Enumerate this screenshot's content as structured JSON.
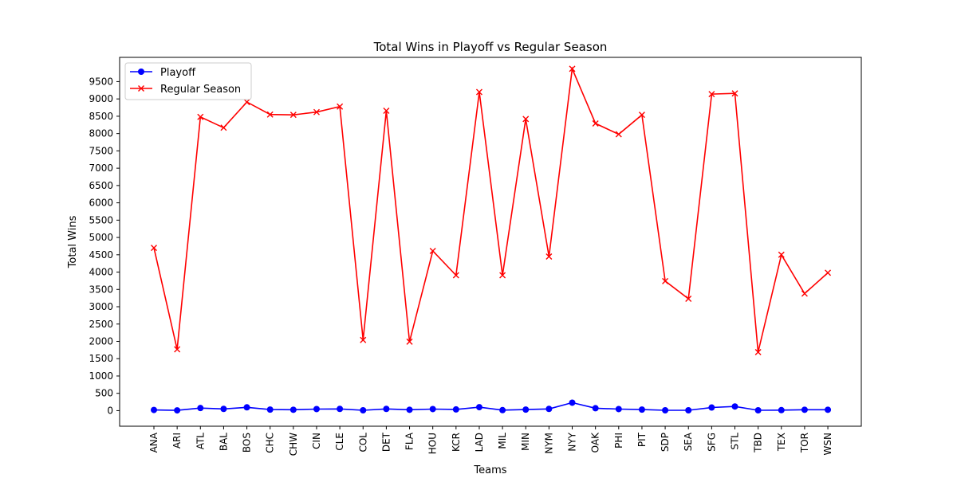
{
  "chart_data": {
    "type": "line",
    "title": "Total Wins in Playoff vs Regular Season",
    "xlabel": "Teams",
    "ylabel": "Total Wins",
    "categories": [
      "ANA",
      "ARI",
      "ATL",
      "BAL",
      "BOS",
      "CHC",
      "CHW",
      "CIN",
      "CLE",
      "COL",
      "DET",
      "FLA",
      "HOU",
      "KCR",
      "LAD",
      "MIL",
      "MIN",
      "NYM",
      "NYY",
      "OAK",
      "PHI",
      "PIT",
      "SDP",
      "SEA",
      "SFG",
      "STL",
      "TBD",
      "TEX",
      "TOR",
      "WSN"
    ],
    "ylim": [
      -450,
      10200
    ],
    "yticks": [
      0,
      500,
      1000,
      1500,
      2000,
      2500,
      3000,
      3500,
      4000,
      4500,
      5000,
      5500,
      6000,
      6500,
      7000,
      7500,
      8000,
      8500,
      9000,
      9500
    ],
    "grid": false,
    "legend_position": "top-left",
    "series": [
      {
        "name": "Playoff",
        "color": "#0000ff",
        "marker": "circle",
        "values": [
          20,
          8,
          75,
          50,
          95,
          30,
          25,
          45,
          50,
          10,
          50,
          25,
          45,
          35,
          100,
          15,
          30,
          50,
          230,
          70,
          45,
          30,
          10,
          10,
          90,
          120,
          10,
          15,
          25,
          25
        ]
      },
      {
        "name": "Regular Season",
        "color": "#ff0000",
        "marker": "x",
        "values": [
          4700,
          1770,
          8480,
          8170,
          8910,
          8550,
          8540,
          8620,
          8780,
          2040,
          8660,
          1990,
          4610,
          3910,
          9200,
          3910,
          8420,
          4450,
          9870,
          8290,
          7980,
          8540,
          3740,
          3230,
          9140,
          9160,
          1690,
          4500,
          3380,
          3980
        ]
      }
    ]
  }
}
